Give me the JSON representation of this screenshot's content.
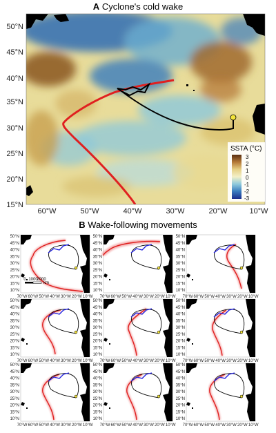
{
  "panel_a": {
    "letter": "A",
    "title": "Cyclone's cold wake",
    "lat_labels": [
      "50°N",
      "45°N",
      "40°N",
      "35°N",
      "30°N",
      "25°N",
      "20°N",
      "15°N"
    ],
    "lon_labels": [
      "60°W",
      "50°W",
      "40°W",
      "30°W",
      "20°W",
      "10°W"
    ],
    "legend": {
      "title": "SSTA (°C)",
      "labels": [
        "3",
        "2",
        "1",
        "0",
        "-1",
        "-2",
        "-3"
      ],
      "colors": [
        "#5a2f10",
        "#b57a38",
        "#e6cf84",
        "#f3f0c8",
        "#8cc8dc",
        "#3a7cbe",
        "#1c2e8c"
      ]
    },
    "colors": {
      "cyclone_track": "#e02020",
      "animal_track": "#000000",
      "end_marker": "#f2e33a",
      "land": "#000000"
    }
  },
  "panel_b": {
    "letter": "B",
    "title": "Wake-following movements",
    "lat_labels": [
      "50°N",
      "45°N",
      "40°N",
      "35°N",
      "30°N",
      "25°N",
      "20°N",
      "15°N",
      "10°N"
    ],
    "lon_labels": [
      "70°W",
      "60°W",
      "50°W",
      "40°W",
      "30°W",
      "20°W",
      "10°W"
    ],
    "scale_bar": {
      "labels": [
        "0",
        "1000",
        "2000"
      ],
      "unit": "km"
    },
    "colors": {
      "simulated_track": "#e02020",
      "wake_following": "#2020e0",
      "animal_track": "#000000"
    }
  }
}
